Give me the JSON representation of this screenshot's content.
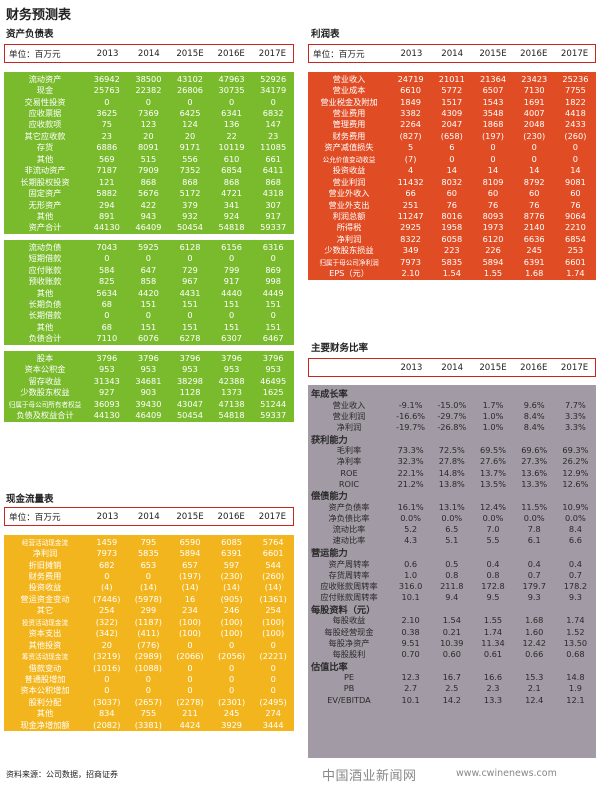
{
  "page_title": "财务预测表",
  "years": [
    "2013",
    "2014",
    "2015E",
    "2016E",
    "2017E"
  ],
  "unit_label": "单位：百万元",
  "balance": {
    "title": "资产负债表",
    "groups": [
      [
        {
          "label": "流动资产",
          "values": [
            "36942",
            "38500",
            "43102",
            "47963",
            "52926"
          ]
        },
        {
          "label": "现金",
          "values": [
            "25763",
            "22382",
            "26806",
            "30735",
            "34179"
          ]
        },
        {
          "label": "交易性投资",
          "values": [
            "0",
            "0",
            "0",
            "0",
            "0"
          ]
        },
        {
          "label": "应收票据",
          "values": [
            "3625",
            "7369",
            "6425",
            "6341",
            "6832"
          ]
        },
        {
          "label": "应收款项",
          "values": [
            "75",
            "123",
            "124",
            "136",
            "147"
          ]
        },
        {
          "label": "其它应收款",
          "values": [
            "23",
            "20",
            "20",
            "22",
            "23"
          ]
        },
        {
          "label": "存货",
          "values": [
            "6886",
            "8091",
            "9171",
            "10119",
            "11085"
          ]
        },
        {
          "label": "其他",
          "values": [
            "569",
            "515",
            "556",
            "610",
            "661"
          ]
        },
        {
          "label": "非流动资产",
          "values": [
            "7187",
            "7909",
            "7352",
            "6854",
            "6411"
          ]
        },
        {
          "label": "长期股权投资",
          "values": [
            "121",
            "868",
            "868",
            "868",
            "868"
          ]
        },
        {
          "label": "固定资产",
          "values": [
            "5882",
            "5676",
            "5172",
            "4721",
            "4318"
          ]
        },
        {
          "label": "无形资产",
          "values": [
            "294",
            "422",
            "379",
            "341",
            "307"
          ]
        },
        {
          "label": "其他",
          "values": [
            "891",
            "943",
            "932",
            "924",
            "917"
          ]
        },
        {
          "label": "资产合计",
          "values": [
            "44130",
            "46409",
            "50454",
            "54818",
            "59337"
          ]
        }
      ],
      [
        {
          "label": "流动负债",
          "values": [
            "7043",
            "5925",
            "6128",
            "6156",
            "6316"
          ]
        },
        {
          "label": "短期借款",
          "values": [
            "0",
            "0",
            "0",
            "0",
            "0"
          ]
        },
        {
          "label": "应付账款",
          "values": [
            "584",
            "647",
            "729",
            "799",
            "869"
          ]
        },
        {
          "label": "预收账款",
          "values": [
            "825",
            "858",
            "967",
            "917",
            "998"
          ]
        },
        {
          "label": "其他",
          "values": [
            "5634",
            "4420",
            "4431",
            "4440",
            "4449"
          ]
        },
        {
          "label": "长期负债",
          "values": [
            "68",
            "151",
            "151",
            "151",
            "151"
          ]
        },
        {
          "label": "长期借款",
          "values": [
            "0",
            "0",
            "0",
            "0",
            "0"
          ]
        },
        {
          "label": "其他",
          "values": [
            "68",
            "151",
            "151",
            "151",
            "151"
          ]
        },
        {
          "label": "负债合计",
          "values": [
            "7110",
            "6076",
            "6278",
            "6307",
            "6467"
          ]
        }
      ],
      [
        {
          "label": "股本",
          "values": [
            "3796",
            "3796",
            "3796",
            "3796",
            "3796"
          ]
        },
        {
          "label": "资本公积金",
          "values": [
            "953",
            "953",
            "953",
            "953",
            "953"
          ]
        },
        {
          "label": "留存收益",
          "values": [
            "31343",
            "34681",
            "38298",
            "42388",
            "46495"
          ]
        },
        {
          "label": "少数股东权益",
          "values": [
            "927",
            "903",
            "1128",
            "1373",
            "1625"
          ]
        },
        {
          "label": "归属于母公司所有者权益",
          "small": true,
          "values": [
            "36093",
            "39430",
            "43047",
            "47138",
            "51244"
          ]
        },
        {
          "label": "负债及权益合计",
          "values": [
            "44130",
            "46409",
            "50454",
            "54818",
            "59337"
          ]
        }
      ]
    ]
  },
  "cashflow": {
    "title": "现金流量表",
    "rows": [
      {
        "label": "经营活动现金流",
        "small": true,
        "values": [
          "1459",
          "795",
          "6590",
          "6085",
          "5764"
        ]
      },
      {
        "label": "净利润",
        "values": [
          "7973",
          "5835",
          "5894",
          "6391",
          "6601"
        ]
      },
      {
        "label": "折旧摊销",
        "values": [
          "682",
          "653",
          "657",
          "597",
          "544"
        ]
      },
      {
        "label": "财务费用",
        "values": [
          "0",
          "0",
          "(197)",
          "(230)",
          "(260)"
        ]
      },
      {
        "label": "投资收益",
        "values": [
          "(4)",
          "(14)",
          "(14)",
          "(14)",
          "(14)"
        ]
      },
      {
        "label": "营运资金变动",
        "values": [
          "(7446)",
          "(5978)",
          "16",
          "(905)",
          "(1361)"
        ]
      },
      {
        "label": "其它",
        "values": [
          "254",
          "299",
          "234",
          "246",
          "254"
        ]
      },
      {
        "label": "投资活动现金流",
        "small": true,
        "values": [
          "(322)",
          "(1187)",
          "(100)",
          "(100)",
          "(100)"
        ]
      },
      {
        "label": "资本支出",
        "values": [
          "(342)",
          "(411)",
          "(100)",
          "(100)",
          "(100)"
        ]
      },
      {
        "label": "其他投资",
        "values": [
          "20",
          "(776)",
          "0",
          "0",
          "0"
        ]
      },
      {
        "label": "筹资活动现金流",
        "small": true,
        "values": [
          "(3219)",
          "(2989)",
          "(2066)",
          "(2056)",
          "(2221)"
        ]
      },
      {
        "label": "借款变动",
        "values": [
          "(1016)",
          "(1088)",
          "0",
          "0",
          "0"
        ]
      },
      {
        "label": "普通股增加",
        "values": [
          "0",
          "0",
          "0",
          "0",
          "0"
        ]
      },
      {
        "label": "资本公积增加",
        "values": [
          "0",
          "0",
          "0",
          "0",
          "0"
        ]
      },
      {
        "label": "股利分配",
        "values": [
          "(3037)",
          "(2657)",
          "(2278)",
          "(2301)",
          "(2495)"
        ]
      },
      {
        "label": "其他",
        "values": [
          "834",
          "755",
          "211",
          "245",
          "274"
        ]
      },
      {
        "label": "现金净增加额",
        "values": [
          "(2082)",
          "(3381)",
          "4424",
          "3929",
          "3444"
        ]
      }
    ]
  },
  "income": {
    "title": "利润表",
    "rows": [
      {
        "label": "营业收入",
        "values": [
          "24719",
          "21011",
          "21364",
          "23423",
          "25236"
        ]
      },
      {
        "label": "营业成本",
        "values": [
          "6610",
          "5772",
          "6507",
          "7130",
          "7755"
        ]
      },
      {
        "label": "营业税金及附加",
        "values": [
          "1849",
          "1517",
          "1543",
          "1691",
          "1822"
        ]
      },
      {
        "label": "营业费用",
        "values": [
          "3382",
          "4309",
          "3548",
          "4007",
          "4418"
        ]
      },
      {
        "label": "管理费用",
        "values": [
          "2264",
          "2047",
          "1868",
          "2048",
          "2433"
        ]
      },
      {
        "label": "财务费用",
        "values": [
          "(827)",
          "(658)",
          "(197)",
          "(230)",
          "(260)"
        ]
      },
      {
        "label": "资产减值损失",
        "values": [
          "5",
          "6",
          "0",
          "0",
          "0"
        ]
      },
      {
        "label": "公允价值变动收益",
        "small": true,
        "values": [
          "(7)",
          "0",
          "0",
          "0",
          "0"
        ]
      },
      {
        "label": "投资收益",
        "values": [
          "4",
          "14",
          "14",
          "14",
          "14"
        ]
      },
      {
        "label": "营业利润",
        "values": [
          "11432",
          "8032",
          "8109",
          "8792",
          "9081"
        ]
      },
      {
        "label": "营业外收入",
        "values": [
          "66",
          "60",
          "60",
          "60",
          "60"
        ]
      },
      {
        "label": "营业外支出",
        "values": [
          "251",
          "76",
          "76",
          "76",
          "76"
        ]
      },
      {
        "label": "利润总额",
        "values": [
          "11247",
          "8016",
          "8093",
          "8776",
          "9064"
        ]
      },
      {
        "label": "所得税",
        "values": [
          "2925",
          "1958",
          "1973",
          "2140",
          "2210"
        ]
      },
      {
        "label": "净利润",
        "values": [
          "8322",
          "6058",
          "6120",
          "6636",
          "6854"
        ]
      },
      {
        "label": "少数股东损益",
        "values": [
          "349",
          "223",
          "226",
          "245",
          "253"
        ]
      },
      {
        "label": "归属于母公司净利润",
        "small": true,
        "values": [
          "7973",
          "5835",
          "5894",
          "6391",
          "6601"
        ]
      },
      {
        "label": "EPS（元）",
        "values": [
          "2.10",
          "1.54",
          "1.55",
          "1.68",
          "1.74"
        ]
      }
    ]
  },
  "ratios": {
    "title": "主要财务比率",
    "sections": [
      {
        "title": "年成长率",
        "rows": [
          {
            "label": "营业收入",
            "values": [
              "-9.1%",
              "-15.0%",
              "1.7%",
              "9.6%",
              "7.7%"
            ]
          },
          {
            "label": "营业利润",
            "values": [
              "-16.6%",
              "-29.7%",
              "1.0%",
              "8.4%",
              "3.3%"
            ]
          },
          {
            "label": "净利润",
            "values": [
              "-19.7%",
              "-26.8%",
              "1.0%",
              "8.4%",
              "3.3%"
            ]
          }
        ]
      },
      {
        "title": "获利能力",
        "rows": [
          {
            "label": "毛利率",
            "values": [
              "73.3%",
              "72.5%",
              "69.5%",
              "69.6%",
              "69.3%"
            ]
          },
          {
            "label": "净利率",
            "values": [
              "32.3%",
              "27.8%",
              "27.6%",
              "27.3%",
              "26.2%"
            ]
          },
          {
            "label": "ROE",
            "values": [
              "22.1%",
              "14.8%",
              "13.7%",
              "13.6%",
              "12.9%"
            ]
          },
          {
            "label": "ROIC",
            "values": [
              "21.2%",
              "13.8%",
              "13.5%",
              "13.3%",
              "12.6%"
            ]
          }
        ]
      },
      {
        "title": "偿债能力",
        "rows": [
          {
            "label": "资产负债率",
            "values": [
              "16.1%",
              "13.1%",
              "12.4%",
              "11.5%",
              "10.9%"
            ]
          },
          {
            "label": "净负债比率",
            "values": [
              "0.0%",
              "0.0%",
              "0.0%",
              "0.0%",
              "0.0%"
            ]
          },
          {
            "label": "流动比率",
            "values": [
              "5.2",
              "6.5",
              "7.0",
              "7.8",
              "8.4"
            ]
          },
          {
            "label": "速动比率",
            "values": [
              "4.3",
              "5.1",
              "5.5",
              "6.1",
              "6.6"
            ]
          }
        ]
      },
      {
        "title": "营运能力",
        "rows": [
          {
            "label": "资产周转率",
            "values": [
              "0.6",
              "0.5",
              "0.4",
              "0.4",
              "0.4"
            ]
          },
          {
            "label": "存货周转率",
            "values": [
              "1.0",
              "0.8",
              "0.8",
              "0.7",
              "0.7"
            ]
          },
          {
            "label": "应收账款周转率",
            "values": [
              "316.0",
              "211.8",
              "172.8",
              "179.7",
              "178.2"
            ]
          },
          {
            "label": "应付账款周转率",
            "values": [
              "10.1",
              "9.4",
              "9.5",
              "9.3",
              "9.3"
            ]
          }
        ]
      },
      {
        "title": "每股资料（元）",
        "rows": [
          {
            "label": "每股收益",
            "values": [
              "2.10",
              "1.54",
              "1.55",
              "1.68",
              "1.74"
            ]
          },
          {
            "label": "每股经营现金",
            "values": [
              "0.38",
              "0.21",
              "1.74",
              "1.60",
              "1.52"
            ]
          },
          {
            "label": "每股净资产",
            "values": [
              "9.51",
              "10.39",
              "11.34",
              "12.42",
              "13.50"
            ]
          },
          {
            "label": "每股股利",
            "values": [
              "0.70",
              "0.60",
              "0.61",
              "0.66",
              "0.68"
            ]
          }
        ]
      },
      {
        "title": "估值比率",
        "rows": [
          {
            "label": "PE",
            "values": [
              "12.3",
              "16.7",
              "16.6",
              "15.3",
              "14.8"
            ]
          },
          {
            "label": "PB",
            "values": [
              "2.7",
              "2.5",
              "2.3",
              "2.1",
              "1.9"
            ]
          },
          {
            "label": "EV/EBITDA",
            "values": [
              "10.1",
              "14.2",
              "13.3",
              "12.4",
              "12.1"
            ]
          }
        ]
      }
    ]
  },
  "source": "资料来源：公司数据，招商证券",
  "watermark": "中国酒业新闻网",
  "watermark_url": "www.cwinenews.com"
}
